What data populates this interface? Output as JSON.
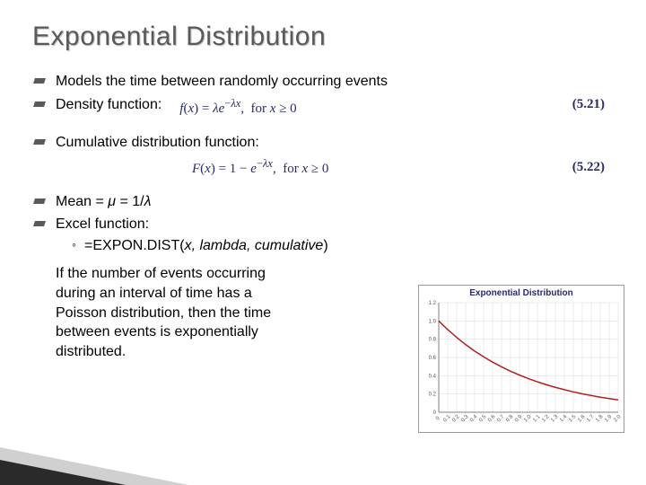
{
  "title": "Exponential Distribution",
  "bullets": {
    "b1": "Models the time between randomly occurring events",
    "b2": "Density function:",
    "b3": "Cumulative distribution function:",
    "b4_prefix": "Mean = ",
    "b4_mu": "μ",
    "b4_mid": " = 1/",
    "b4_lambda": "λ",
    "b5": "Excel function:",
    "sub1": "=EXPON.DIST(x, lambda, cumulative)"
  },
  "formula1": {
    "text": "f(x) = λe⁻ˡˣ,  for x ≥ 0",
    "eqnum": "(5.21)"
  },
  "formula2": {
    "text": "F(x) = 1 − e⁻ˡˣ,  for x ≥ 0",
    "eqnum": "(5.22)"
  },
  "paragraph": "If the number of events occurring during an interval of time has a Poisson distribution, then the time between events is exponentially distributed.",
  "chart": {
    "title": "Exponential Distribution",
    "type": "line",
    "x_ticks": [
      "0",
      "0.1",
      "0.2",
      "0.3",
      "0.4",
      "0.5",
      "0.6",
      "0.7",
      "0.8",
      "0.9",
      "1.0",
      "1.1",
      "1.2",
      "1.3",
      "1.4",
      "1.5",
      "1.6",
      "1.7",
      "1.8",
      "1.9",
      "2.0"
    ],
    "y_ticks": [
      "0",
      "0.2",
      "0.4",
      "0.6",
      "0.8",
      "1.0",
      "1.2"
    ],
    "ylim": [
      0,
      1.2
    ],
    "xlim": [
      0,
      2.0
    ],
    "line_color": "#b02020",
    "grid_color": "#d8d8d8",
    "axis_color": "#808080",
    "tick_font_size": 6,
    "line_width": 1.5,
    "background": "#ffffff",
    "points": [
      [
        0.0,
        1.0
      ],
      [
        0.1,
        0.905
      ],
      [
        0.2,
        0.819
      ],
      [
        0.3,
        0.741
      ],
      [
        0.4,
        0.67
      ],
      [
        0.5,
        0.607
      ],
      [
        0.6,
        0.549
      ],
      [
        0.7,
        0.497
      ],
      [
        0.8,
        0.449
      ],
      [
        0.9,
        0.407
      ],
      [
        1.0,
        0.368
      ],
      [
        1.1,
        0.333
      ],
      [
        1.2,
        0.301
      ],
      [
        1.3,
        0.273
      ],
      [
        1.4,
        0.247
      ],
      [
        1.5,
        0.223
      ],
      [
        1.6,
        0.202
      ],
      [
        1.7,
        0.183
      ],
      [
        1.8,
        0.165
      ],
      [
        1.9,
        0.15
      ],
      [
        2.0,
        0.135
      ]
    ]
  },
  "decoration": {
    "stripe_dark": "#2a2a2a",
    "stripe_light": "#d0d0d0"
  }
}
